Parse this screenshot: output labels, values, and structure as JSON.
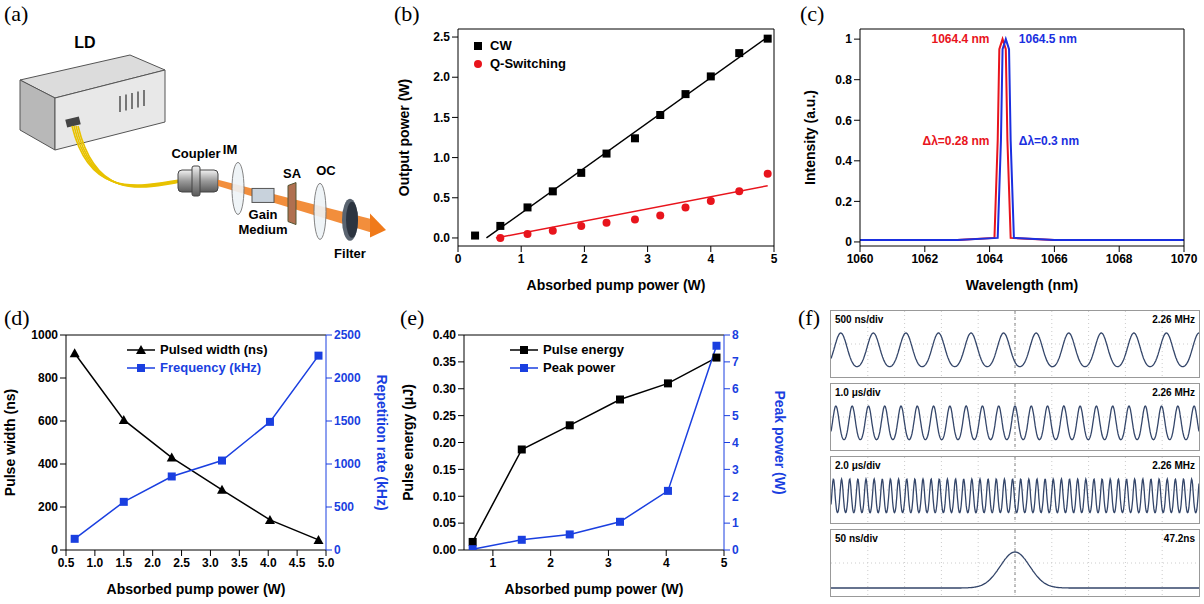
{
  "diagram": {
    "panel": "(a)",
    "labels": {
      "ld": "LD",
      "coupler": "Coupler",
      "im": "IM",
      "gain_medium": "Gain Medium",
      "sa": "SA",
      "oc": "OC",
      "filter": "Filter"
    }
  },
  "chart_data": [
    {
      "panel": "(b)",
      "type": "scatter",
      "x_label": "Absorbed pump power (W)",
      "y_label": "Output power (W)",
      "xlim": [
        0,
        5
      ],
      "xticks": [
        0,
        1,
        2,
        3,
        4,
        5
      ],
      "ylim": [
        -0.1,
        2.6
      ],
      "yticks": [
        {
          "value": 0,
          "label": "0.0"
        },
        0.5,
        {
          "value": 1,
          "label": "1.0"
        },
        1.5,
        {
          "value": 2,
          "label": "2.0"
        },
        2.5
      ],
      "legend": "upper left",
      "series": [
        {
          "name": "CW",
          "color": "#000000",
          "marker": "square",
          "x": [
            0.27,
            0.67,
            1.1,
            1.5,
            1.95,
            2.35,
            2.8,
            3.2,
            3.6,
            4.0,
            4.45,
            4.9
          ],
          "values": [
            0.03,
            0.15,
            0.38,
            0.58,
            0.81,
            1.05,
            1.24,
            1.53,
            1.79,
            2.01,
            2.3,
            2.48
          ],
          "fit": {
            "x": [
              0.45,
              4.9
            ],
            "values": [
              0,
              2.5
            ]
          }
        },
        {
          "name": "Q-Switching",
          "color": "#e8141c",
          "marker": "circle",
          "x": [
            0.67,
            1.1,
            1.5,
            1.95,
            2.35,
            2.8,
            3.2,
            3.6,
            4.0,
            4.45,
            4.9
          ],
          "values": [
            0.0,
            0.05,
            0.09,
            0.15,
            0.19,
            0.23,
            0.28,
            0.38,
            0.46,
            0.58,
            0.8
          ],
          "fit": {
            "x": [
              0.6,
              4.9
            ],
            "values": [
              0,
              0.65
            ]
          }
        }
      ]
    },
    {
      "panel": "(c)",
      "type": "line",
      "x_label": "Wavelength (nm)",
      "y_label": "Intensity (a.u.)",
      "xlim": [
        1060,
        1070
      ],
      "xticks": [
        1060,
        1062,
        1064,
        1066,
        1068,
        1070
      ],
      "ylim": [
        -0.02,
        1.05
      ],
      "yticks": [
        0,
        0.2,
        0.4,
        0.6,
        0.8,
        1
      ],
      "series": [
        {
          "color": "#e8141c",
          "x": [
            1060,
            1063,
            1064.15,
            1064.25,
            1064.3,
            1064.4,
            1064.5,
            1064.55,
            1064.65,
            1066,
            1070
          ],
          "values": [
            0.01,
            0.01,
            0.02,
            0.5,
            0.95,
            1,
            0.95,
            0.5,
            0.02,
            0.01,
            0.01
          ],
          "peak_label": "1064.4 nm",
          "width_label": "Δλ=0.28 nm"
        },
        {
          "color": "#1a2fe0",
          "x": [
            1060,
            1063,
            1064.25,
            1064.35,
            1064.4,
            1064.5,
            1064.6,
            1064.65,
            1064.75,
            1066,
            1070
          ],
          "values": [
            0.01,
            0.01,
            0.02,
            0.5,
            0.95,
            1,
            0.95,
            0.5,
            0.02,
            0.01,
            0.01
          ],
          "peak_label": "1064.5 nm",
          "width_label": "Δλ=0.3 nm"
        }
      ]
    },
    {
      "panel": "(d)",
      "type": "line",
      "x_label": "Absorbed pump power (W)",
      "y_label": "Pulse width (ns)",
      "y2_label": "Repetition rate (kHz)",
      "xlim": [
        0.5,
        5
      ],
      "xticks": [
        0.5,
        {
          "value": 1,
          "label": "1.0"
        },
        1.5,
        {
          "value": 2,
          "label": "2.0"
        },
        2.5,
        {
          "value": 3,
          "label": "3.0"
        },
        3.5,
        {
          "value": 4,
          "label": "4.0"
        },
        4.5,
        {
          "value": 5,
          "label": "5.0"
        }
      ],
      "ylim": [
        0,
        1000
      ],
      "yticks": [
        0,
        200,
        400,
        600,
        800,
        1000
      ],
      "y2lim": [
        0,
        2500
      ],
      "y2ticks": [
        0,
        500,
        1000,
        1500,
        2000,
        2500
      ],
      "legend": "upper center",
      "x": [
        0.65,
        1.5,
        2.33,
        3.2,
        4.03,
        4.87
      ],
      "series": [
        {
          "name": "Pulsed width (ns)",
          "color": "#000000",
          "marker": "triangle",
          "values": [
            915,
            605,
            430,
            280,
            140,
            47
          ]
        },
        {
          "name": "Frequency (kHz)",
          "color": "#1a3fe0",
          "marker": "square",
          "axis": "y2",
          "values": [
            130,
            560,
            855,
            1040,
            1490,
            2260
          ]
        }
      ]
    },
    {
      "panel": "(e)",
      "type": "line",
      "x_label": "Absorbed pump power (W)",
      "y_label": "Pulse energy (μJ)",
      "y2_label": "Peak power (W)",
      "xlim": [
        0.5,
        5
      ],
      "xticks": [
        1,
        2,
        3,
        4,
        5
      ],
      "ylim": [
        0,
        0.4
      ],
      "yticks": [
        {
          "value": 0,
          "label": "0.00"
        },
        0.05,
        {
          "value": 0.1,
          "label": "0.10"
        },
        0.15,
        {
          "value": 0.2,
          "label": "0.20"
        },
        0.25,
        {
          "value": 0.3,
          "label": "0.30"
        },
        0.35,
        {
          "value": 0.4,
          "label": "0.40"
        }
      ],
      "y2lim": [
        0,
        8
      ],
      "y2ticks": [
        0,
        1,
        2,
        3,
        4,
        5,
        6,
        7,
        8
      ],
      "legend": "upper left",
      "x": [
        0.65,
        1.5,
        2.33,
        3.2,
        4.03,
        4.87
      ],
      "series": [
        {
          "name": "Pulse energy",
          "color": "#000000",
          "marker": "square",
          "values": [
            0.015,
            0.187,
            0.232,
            0.28,
            0.31,
            0.358
          ]
        },
        {
          "name": "Peak power",
          "color": "#1a3fe0",
          "marker": "square",
          "axis": "y2",
          "values": [
            0.03,
            0.38,
            0.58,
            1.05,
            2.2,
            7.6
          ]
        }
      ]
    }
  ],
  "oscilloscope": {
    "panel": "(f)",
    "traces": [
      {
        "timebase": "500 ns/div",
        "reading": "2.26 MHz"
      },
      {
        "timebase": "1.0 μs/div",
        "reading": "2.26 MHz"
      },
      {
        "timebase": "2.0 μs/div",
        "reading": "2.26 MHz"
      },
      {
        "timebase": "50 ns/div",
        "reading": "47.2ns"
      }
    ]
  }
}
